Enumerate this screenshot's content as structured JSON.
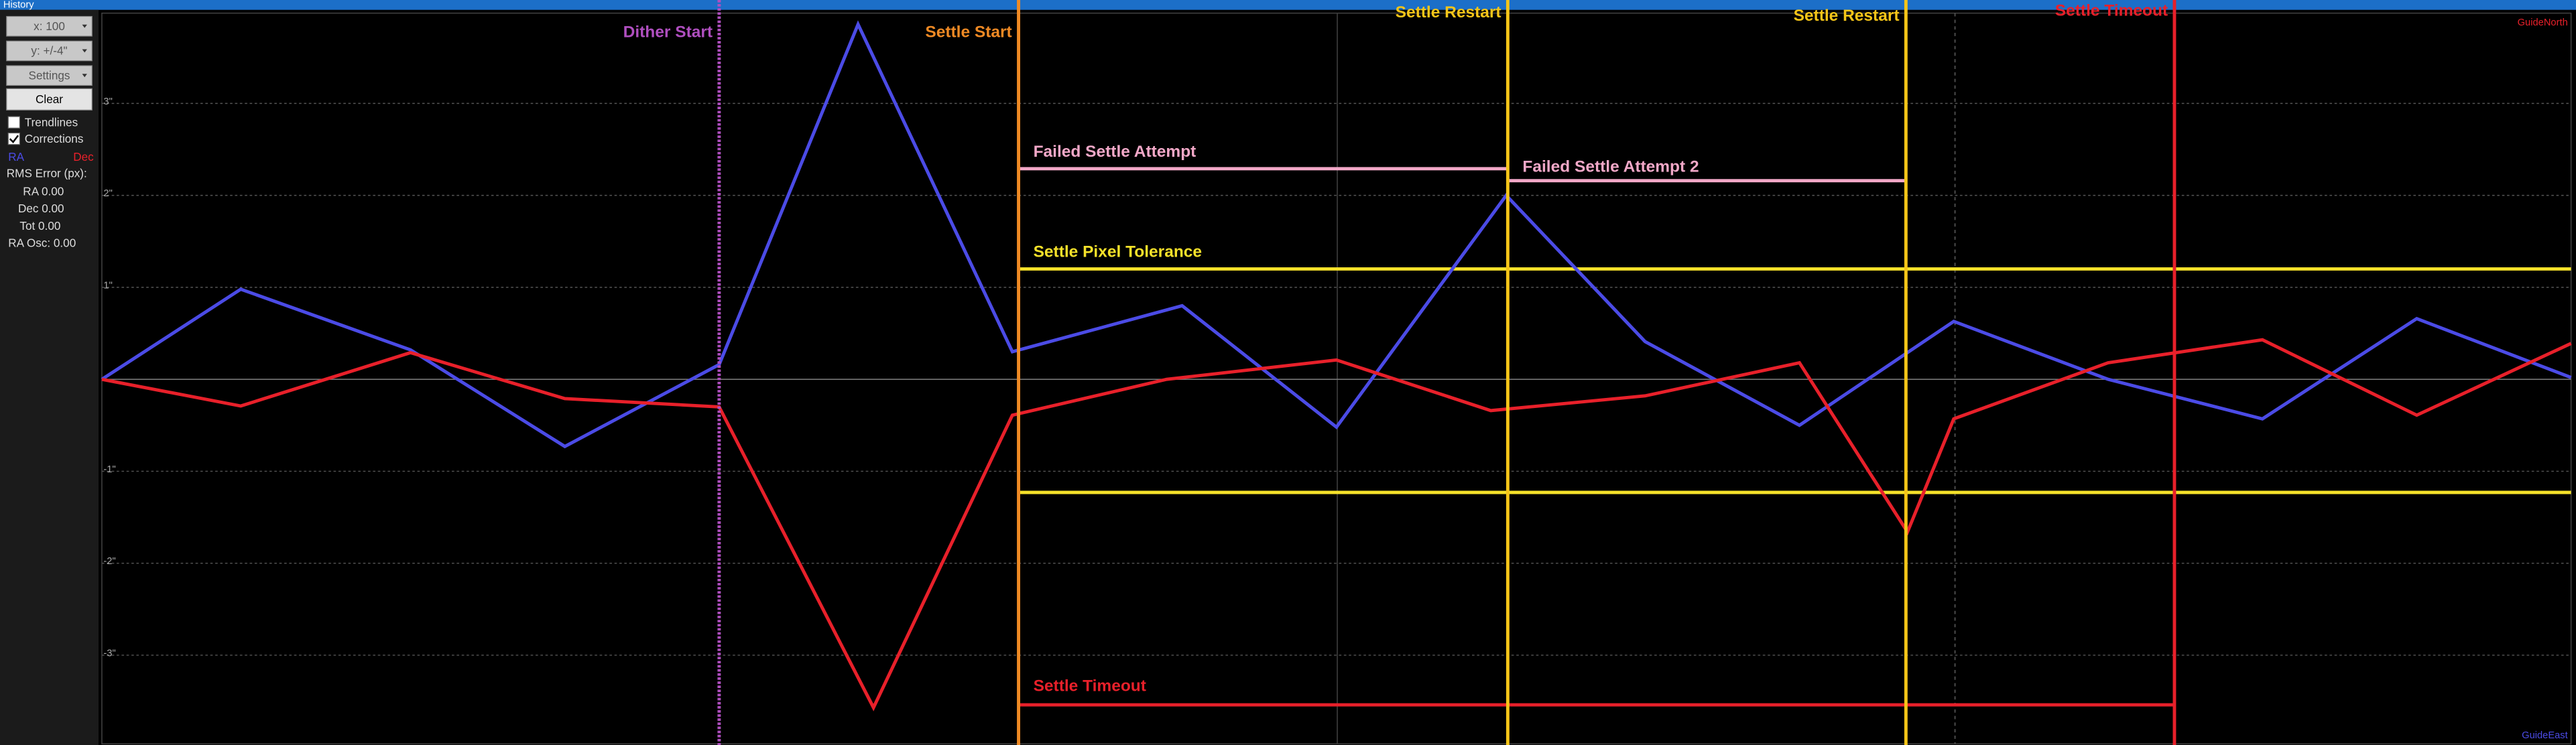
{
  "window": {
    "title": "History"
  },
  "panel": {
    "dropdowns": [
      "x: 100",
      "y: +/-4\"",
      "Settings"
    ],
    "button": "Clear",
    "checkboxes": [
      {
        "label": "Trendlines",
        "checked": false
      },
      {
        "label": "Corrections",
        "checked": true
      }
    ],
    "stats_title": "RMS Error (px):",
    "stats": [
      "RA 0.00",
      "Dec 0.00",
      "Tot 0.00",
      "RA Osc: 0.00"
    ]
  },
  "chart_data": {
    "type": "line",
    "corner_labels": {
      "top": "GuideNorth",
      "bottom": "GuideEast"
    },
    "xlim": [
      0,
      16
    ],
    "ylim": [
      -4,
      4
    ],
    "yticks": [
      {
        "value": 3,
        "label": "3\""
      },
      {
        "value": 2,
        "label": "2\""
      },
      {
        "value": 1,
        "label": "1\""
      },
      {
        "value": -1,
        "label": "-1\""
      },
      {
        "value": -2,
        "label": "-2\""
      },
      {
        "value": -3,
        "label": "-3\""
      }
    ],
    "grid": true,
    "series": [
      {
        "name": "RA",
        "color": "#4b4be6",
        "x": [
          0,
          0.9,
          2.0,
          3.0,
          4.0,
          4.9,
          5.9,
          7.0,
          8.0,
          9.1,
          10.0,
          11.0,
          12.0,
          13.0,
          14.0,
          15.0,
          16.0
        ],
        "values": [
          0,
          0.98,
          0.32,
          -0.73,
          0.16,
          3.86,
          0.3,
          0.8,
          -0.52,
          2.0,
          0.41,
          -0.5,
          0.63,
          0,
          -0.43,
          0.66,
          0.02
        ]
      },
      {
        "name": "Dec",
        "color": "#e8202a",
        "x": [
          0,
          0.9,
          2.0,
          3.0,
          4.0,
          5.0,
          5.9,
          6.9,
          8.0,
          9.0,
          10.0,
          11.0,
          11.7,
          12.0,
          13.0,
          14.0,
          15.0,
          16.0
        ],
        "values": [
          0,
          -0.29,
          0.29,
          -0.21,
          -0.3,
          -3.57,
          -0.39,
          0,
          0.21,
          -0.34,
          -0.18,
          0.18,
          -1.66,
          -0.43,
          0.18,
          0.43,
          -0.39,
          0.39
        ]
      }
    ],
    "events": [
      {
        "label": "Dither Start",
        "x": 4.0,
        "color": "#b04fc0"
      },
      {
        "label": "Settle Start",
        "x": 5.94,
        "color": "#f08a24"
      },
      {
        "label": "Settle Restart",
        "x": 9.11,
        "color": "#f5c518"
      },
      {
        "label": "Settle Restart",
        "x": 11.69,
        "color": "#f5c518"
      },
      {
        "label": "Settle Timeout",
        "x": 13.43,
        "color": "#e8202a"
      }
    ],
    "levels": [
      {
        "label": "Failed Settle Attempt",
        "y": [
          2.29
        ],
        "x": [
          5.94,
          9.11
        ],
        "color": "#f2a8c8"
      },
      {
        "label": "Failed Settle Attempt 2",
        "y": [
          2.16
        ],
        "x": [
          9.11,
          11.69
        ],
        "color": "#f2a8c8"
      },
      {
        "label": "Settle Pixel Tolerance",
        "y": [
          1.2,
          -1.23
        ],
        "x": [
          5.94,
          16
        ],
        "color": "#f5e12a"
      },
      {
        "label": "Settle Timeout",
        "y": [
          -3.54
        ],
        "x": [
          5.94,
          13.43
        ],
        "color": "#e8202a"
      }
    ]
  }
}
